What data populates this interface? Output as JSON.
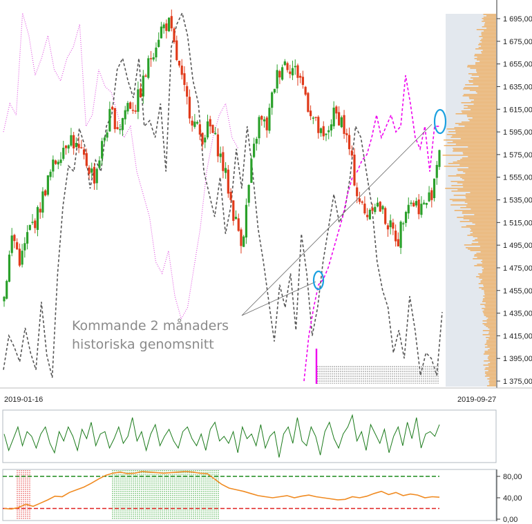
{
  "chart_data": [
    {
      "type": "line",
      "panel": "main",
      "title": "",
      "y_ticks": [
        "1 375,00",
        "1 395,00",
        "1 415,00",
        "1 435,00",
        "1 455,00",
        "1 475,00",
        "1 495,00",
        "1 515,00",
        "1 535,00",
        "1 555,00",
        "1 575,00",
        "1 595,00",
        "1 615,00",
        "1 635,00",
        "1 655,00",
        "1 675,00",
        "1 695,00"
      ],
      "y_tick_values": [
        1375,
        1395,
        1415,
        1435,
        1455,
        1475,
        1495,
        1515,
        1535,
        1555,
        1575,
        1595,
        1615,
        1635,
        1655,
        1675,
        1695
      ],
      "ylim": [
        1362,
        1706
      ],
      "x_labels": {
        "start": "2019-01-16",
        "end": "2019-09-27"
      },
      "annotation": {
        "line1": "Kommande 2 månaders",
        "line2": "historiska genomsnitt"
      },
      "price_path": [
        1452,
        1505,
        1480,
        1508,
        1520,
        1545,
        1565,
        1580,
        1592,
        1578,
        1568,
        1555,
        1585,
        1612,
        1598,
        1620,
        1618,
        1640,
        1665,
        1685,
        1692,
        1660,
        1628,
        1605,
        1590,
        1600,
        1582,
        1555,
        1520,
        1498,
        1560,
        1605,
        1600,
        1640,
        1658,
        1652,
        1645,
        1620,
        1600,
        1585,
        1610,
        1608,
        1580,
        1540,
        1520,
        1535,
        1525,
        1510,
        1500,
        1535,
        1532,
        1528,
        1540,
        1582
      ],
      "series": [
        {
          "name": "",
          "color": "#555555",
          "style": "dashed",
          "values": [
            1385,
            1415,
            1405,
            1392,
            1422,
            1400,
            1385,
            1445,
            1398,
            1378,
            1470,
            1530,
            1565,
            1560,
            1598,
            1583,
            1545,
            1570,
            1560,
            1600,
            1610,
            1650,
            1660,
            1640,
            1625,
            1660,
            1600,
            1605,
            1590,
            1620,
            1560,
            1670,
            1690,
            1700,
            1680,
            1640,
            1620,
            1560,
            1540,
            1520,
            1555,
            1505,
            1530,
            1580,
            1545,
            1600,
            1560,
            1510,
            1480,
            1445,
            1410,
            1460,
            1440,
            1470,
            1420,
            1505,
            1470,
            1415,
            1440,
            1480,
            1510,
            1540,
            1515,
            1525,
            1555,
            1600,
            1590,
            1560,
            1530,
            1480,
            1455,
            1440,
            1400,
            1420,
            1395,
            1450,
            1420,
            1380,
            1400,
            1395,
            1380,
            1436
          ]
        },
        {
          "name": "",
          "color": "#dd44dd",
          "style": "dotted",
          "values": [
            1595,
            1620,
            1610,
            1700,
            1680,
            1645,
            1660,
            1680,
            1650,
            1640,
            1660,
            1670,
            1690,
            1600,
            1610,
            1650,
            1635,
            1630,
            1610,
            1590,
            1600,
            1560,
            1540,
            1520,
            1480,
            1470,
            1490,
            1450,
            1430,
            1440,
            1475,
            1510,
            1560,
            1590,
            1610,
            1620,
            1590,
            1580
          ]
        },
        {
          "name": "",
          "color": "#ee00ee",
          "style": "dashed",
          "values": [
            1375,
            1415,
            1440,
            1460,
            1465,
            1475,
            1490,
            1505,
            1520,
            1540,
            1555,
            1560,
            1570,
            1575,
            1590,
            1610,
            1590,
            1600,
            1610,
            1595,
            1600,
            1645,
            1620,
            1590,
            1580,
            1600,
            1560,
            1600,
            1600
          ]
        }
      ],
      "volume_profile": {
        "color": "#f0a040",
        "range": [
          1375,
          1700
        ]
      },
      "trendline": {
        "from": [
          1459,
          "2019-07-17"
        ],
        "to": [
          1603,
          "2019-09-24"
        ]
      }
    },
    {
      "type": "line",
      "panel": "oscillator",
      "title": "",
      "series": [
        {
          "name": "",
          "color": "#1a7a1a",
          "values": [
            0.55,
            0.2,
            0.45,
            0.7,
            0.3,
            0.6,
            0.5,
            0.25,
            0.55,
            0.7,
            0.35,
            0.15,
            0.6,
            0.4,
            0.7,
            0.5,
            0.2,
            0.65,
            0.45,
            0.8,
            0.3,
            0.55,
            0.6,
            0.25,
            0.45,
            0.7,
            0.35,
            0.5,
            0.9,
            0.4,
            0.6,
            0.2,
            0.55,
            0.75,
            0.3,
            0.5,
            0.65,
            0.4,
            0.25,
            0.6,
            0.7,
            0.45,
            0.3,
            0.55,
            0.2,
            0.65,
            0.8,
            0.4,
            0.5,
            0.35,
            0.6,
            0.15,
            0.7,
            0.45,
            0.55,
            0.3,
            0.75,
            0.25,
            0.5,
            0.6,
            0.05,
            0.55,
            0.7,
            0.35,
            0.9,
            0.4,
            0.3,
            0.7,
            0.5,
            0.1,
            0.6,
            0.8,
            0.45,
            0.25,
            0.55,
            0.7,
            0.95,
            0.4,
            0.6,
            0.2,
            0.75,
            0.55,
            0.35,
            0.65,
            0.15,
            0.5,
            0.7,
            0.3,
            0.8,
            0.45,
            0.9,
            0.25,
            0.55,
            0.6,
            0.5,
            0.75
          ]
        }
      ]
    },
    {
      "type": "line",
      "panel": "rsi",
      "title": "",
      "y_ticks": [
        "0,00",
        "40,00",
        "80,00"
      ],
      "y_tick_values": [
        0,
        40,
        80
      ],
      "ylim": [
        0,
        100
      ],
      "upper_level": 80,
      "lower_level": 20,
      "series": [
        {
          "name": "",
          "color": "#f08a20",
          "values": [
            20,
            19,
            22,
            28,
            24,
            30,
            36,
            43,
            42,
            50,
            55,
            60,
            67,
            75,
            82,
            86,
            88,
            85,
            86,
            89,
            88,
            87,
            86,
            87,
            88,
            89,
            88,
            86,
            85,
            75,
            65,
            58,
            55,
            52,
            48,
            44,
            42,
            40,
            42,
            44,
            40,
            43,
            45,
            42,
            40,
            38,
            36,
            37,
            42,
            40,
            43,
            48,
            52,
            46,
            50,
            44,
            47,
            45,
            40,
            42,
            41
          ]
        }
      ]
    }
  ],
  "colors": {
    "up_candle": "#2aa02a",
    "down_candle": "#e03a1a",
    "highlight_circle": "#1aa0e0",
    "projection_panel": "#e3e8ee",
    "overbought_zone": "#28a028",
    "oversold_zone": "#e02828"
  }
}
